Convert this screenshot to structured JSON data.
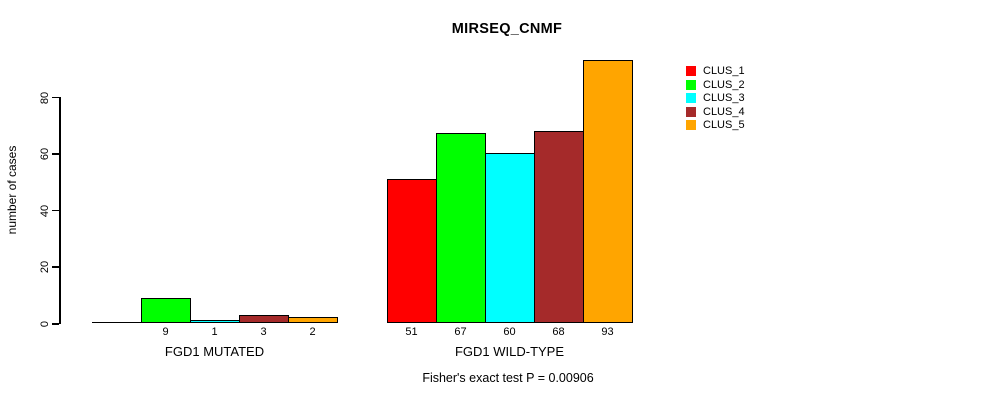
{
  "chart_data": {
    "type": "bar",
    "title": "MIRSEQ_CNMF",
    "ylabel": "number of cases",
    "xlabel": "",
    "yticks": [
      0,
      20,
      40,
      60,
      80
    ],
    "ylim": [
      0,
      93
    ],
    "grid": false,
    "legend_position": "right-outside",
    "categories": [
      "FGD1 MUTATED",
      "FGD1 WILD-TYPE"
    ],
    "groups": [
      {
        "label": "FGD1 MUTATED",
        "values": [
          0,
          9,
          1,
          3,
          2
        ]
      },
      {
        "label": "FGD1 WILD-TYPE",
        "values": [
          51,
          67,
          60,
          68,
          93
        ]
      }
    ],
    "series": [
      {
        "name": "CLUS_1",
        "color": "#ff0000"
      },
      {
        "name": "CLUS_2",
        "color": "#00ff00"
      },
      {
        "name": "CLUS_3",
        "color": "#00ffff"
      },
      {
        "name": "CLUS_4",
        "color": "#a52a2a"
      },
      {
        "name": "CLUS_5",
        "color": "#ffa500"
      }
    ],
    "bar_value_labels": "values shown under each bar; zero values show no label",
    "footnote": "Fisher's exact test P = 0.00906"
  },
  "colors": {
    "background": "#ffffff",
    "axis": "#000000",
    "text": "#000000"
  }
}
